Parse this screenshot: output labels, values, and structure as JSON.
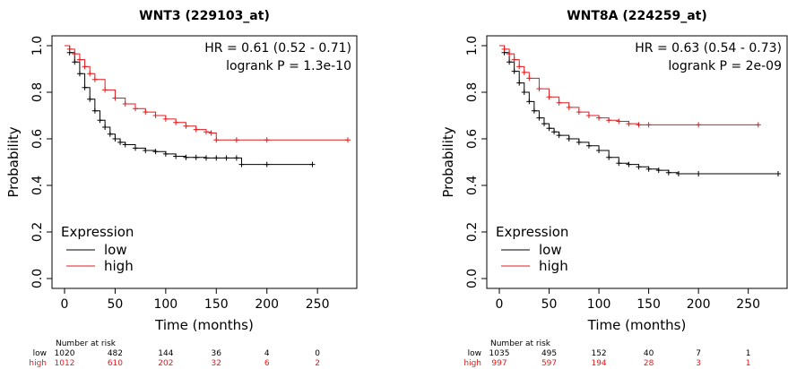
{
  "chart_data": [
    {
      "type": "line",
      "title": "WNT3 (229103_at)",
      "xlabel": "Time (months)",
      "ylabel": "Probability",
      "xlim": [
        0,
        280
      ],
      "ylim": [
        0,
        1
      ],
      "x_ticks": [
        "0",
        "50",
        "100",
        "150",
        "200",
        "250"
      ],
      "y_ticks": [
        "0.0",
        "0.2",
        "0.4",
        "0.6",
        "0.8",
        "1.0"
      ],
      "hr_text": "HR = 0.61 (0.52 - 0.71)",
      "p_text": "logrank P = 1.3e-10",
      "legend_title": "Expression",
      "legend_placement": "bottom-left",
      "grid": false,
      "series": [
        {
          "name": "low",
          "color": "#000000",
          "x": [
            0,
            5,
            10,
            15,
            20,
            25,
            30,
            35,
            40,
            45,
            50,
            55,
            60,
            70,
            80,
            90,
            100,
            110,
            120,
            130,
            140,
            150,
            160,
            170,
            175,
            200,
            245
          ],
          "y": [
            1.0,
            0.97,
            0.93,
            0.88,
            0.82,
            0.77,
            0.72,
            0.68,
            0.65,
            0.62,
            0.6,
            0.585,
            0.575,
            0.56,
            0.55,
            0.545,
            0.535,
            0.525,
            0.52,
            0.52,
            0.518,
            0.518,
            0.518,
            0.518,
            0.49,
            0.49,
            0.49
          ]
        },
        {
          "name": "high",
          "color": "#e41a1c",
          "x": [
            0,
            5,
            10,
            15,
            20,
            25,
            30,
            40,
            50,
            60,
            70,
            80,
            90,
            100,
            110,
            120,
            130,
            140,
            145,
            150,
            170,
            200,
            280
          ],
          "y": [
            1.0,
            0.985,
            0.965,
            0.94,
            0.91,
            0.88,
            0.855,
            0.81,
            0.775,
            0.75,
            0.73,
            0.715,
            0.7,
            0.685,
            0.67,
            0.655,
            0.64,
            0.63,
            0.625,
            0.595,
            0.595,
            0.595,
            0.595
          ]
        }
      ],
      "risk_table": {
        "header": "Number at risk",
        "times": [
          0,
          50,
          100,
          150,
          200,
          250
        ],
        "rows": [
          {
            "label": "low",
            "color": "#000000",
            "values": [
              "1020",
              "482",
              "144",
              "36",
              "4",
              "0"
            ]
          },
          {
            "label": "high",
            "color": "#e41a1c",
            "values": [
              "1012",
              "610",
              "202",
              "32",
              "6",
              "2"
            ]
          }
        ]
      }
    },
    {
      "type": "line",
      "title": "WNT8A (224259_at)",
      "xlabel": "Time (months)",
      "ylabel": "Probability",
      "xlim": [
        0,
        280
      ],
      "ylim": [
        0,
        1
      ],
      "x_ticks": [
        "0",
        "50",
        "100",
        "150",
        "200",
        "250"
      ],
      "y_ticks": [
        "0.0",
        "0.2",
        "0.4",
        "0.6",
        "0.8",
        "1.0"
      ],
      "hr_text": "HR = 0.63 (0.54 - 0.73)",
      "p_text": "logrank P = 2e-09",
      "legend_title": "Expression",
      "legend_placement": "bottom-left",
      "grid": false,
      "series": [
        {
          "name": "low",
          "color": "#000000",
          "x": [
            0,
            5,
            10,
            15,
            20,
            25,
            30,
            35,
            40,
            45,
            50,
            55,
            60,
            70,
            80,
            90,
            100,
            110,
            120,
            130,
            140,
            150,
            160,
            170,
            180,
            200,
            280
          ],
          "y": [
            1.0,
            0.97,
            0.93,
            0.89,
            0.84,
            0.8,
            0.76,
            0.72,
            0.69,
            0.665,
            0.645,
            0.63,
            0.615,
            0.6,
            0.585,
            0.57,
            0.55,
            0.52,
            0.495,
            0.49,
            0.48,
            0.47,
            0.465,
            0.455,
            0.45,
            0.45,
            0.45
          ]
        },
        {
          "name": "high",
          "color": "#e41a1c",
          "x": [
            0,
            5,
            10,
            15,
            20,
            25,
            30,
            40,
            50,
            60,
            70,
            80,
            90,
            100,
            110,
            120,
            130,
            140,
            150,
            200,
            260
          ],
          "y": [
            1.0,
            0.985,
            0.965,
            0.94,
            0.91,
            0.885,
            0.86,
            0.815,
            0.78,
            0.755,
            0.735,
            0.715,
            0.7,
            0.69,
            0.68,
            0.675,
            0.665,
            0.66,
            0.66,
            0.66,
            0.66
          ]
        }
      ],
      "risk_table": {
        "header": "Number at risk",
        "times": [
          0,
          50,
          100,
          150,
          200,
          250
        ],
        "rows": [
          {
            "label": "low",
            "color": "#000000",
            "values": [
              "1035",
              "495",
              "152",
              "40",
              "7",
              "1"
            ]
          },
          {
            "label": "high",
            "color": "#e41a1c",
            "values": [
              "997",
              "597",
              "194",
              "28",
              "3",
              "1"
            ]
          }
        ]
      }
    }
  ]
}
